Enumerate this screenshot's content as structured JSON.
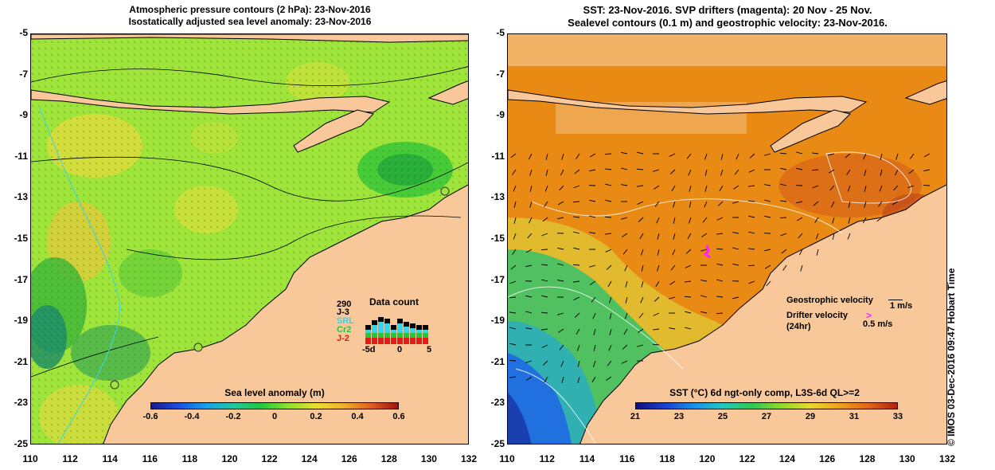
{
  "left_panel": {
    "title_line1": "Atmospheric pressure contours (2 hPa): 23-Nov-2016",
    "title_line2": "Isostatically adjusted sea level anomaly: 23-Nov-2016",
    "colorbar": {
      "title": "Sea level anomaly (m)",
      "labels": [
        "-0.6",
        "-0.4",
        "-0.2",
        "0",
        "0.2",
        "0.4",
        "0.6"
      ],
      "range": [
        -0.6,
        0.6
      ]
    },
    "data_count": {
      "title": "Data count",
      "max_label": "290",
      "series": [
        "J-3",
        "SRL",
        "Cr2",
        "J-2"
      ],
      "series_colors": [
        "#000000",
        "#33d6f0",
        "#22c83c",
        "#e81818"
      ],
      "x_labels": [
        "-5d",
        "0",
        "5"
      ]
    }
  },
  "right_panel": {
    "title_line1": "SST: 23-Nov-2016. SVP drifters (magenta): 20 Nov - 25 Nov.",
    "title_line2": "Sealevel contours (0.1 m) and geostrophic velocity: 23-Nov-2016.",
    "colorbar": {
      "title": "SST (°C) 6d ngt-only comp, L3S-6d QL>=2",
      "labels": [
        "21",
        "23",
        "25",
        "27",
        "29",
        "31",
        "33"
      ],
      "range": [
        21,
        33
      ]
    },
    "legend": {
      "geostrophic_label": "Geostrophic velocity",
      "geostrophic_scale": "1 m/s",
      "drifter_label": "Drifter velocity",
      "drifter_period": "(24hr)",
      "drifter_scale": "0.5 m/s"
    }
  },
  "axes": {
    "lon_labels": [
      "110",
      "112",
      "114",
      "116",
      "118",
      "120",
      "122",
      "124",
      "126",
      "128",
      "130",
      "132"
    ],
    "lat_labels": [
      "-5",
      "-7",
      "-9",
      "-11",
      "-13",
      "-15",
      "-17",
      "-19",
      "-21",
      "-23",
      "-25"
    ],
    "lon_range": [
      110,
      132
    ],
    "lat_range": [
      -25,
      -5
    ]
  },
  "credit": "© IMOS 03-Dec-2016 09:47 Hobart Time",
  "colors": {
    "land": "#f8c89a",
    "sla_base": "#9ee43a",
    "sst_base": "#e88a14"
  }
}
